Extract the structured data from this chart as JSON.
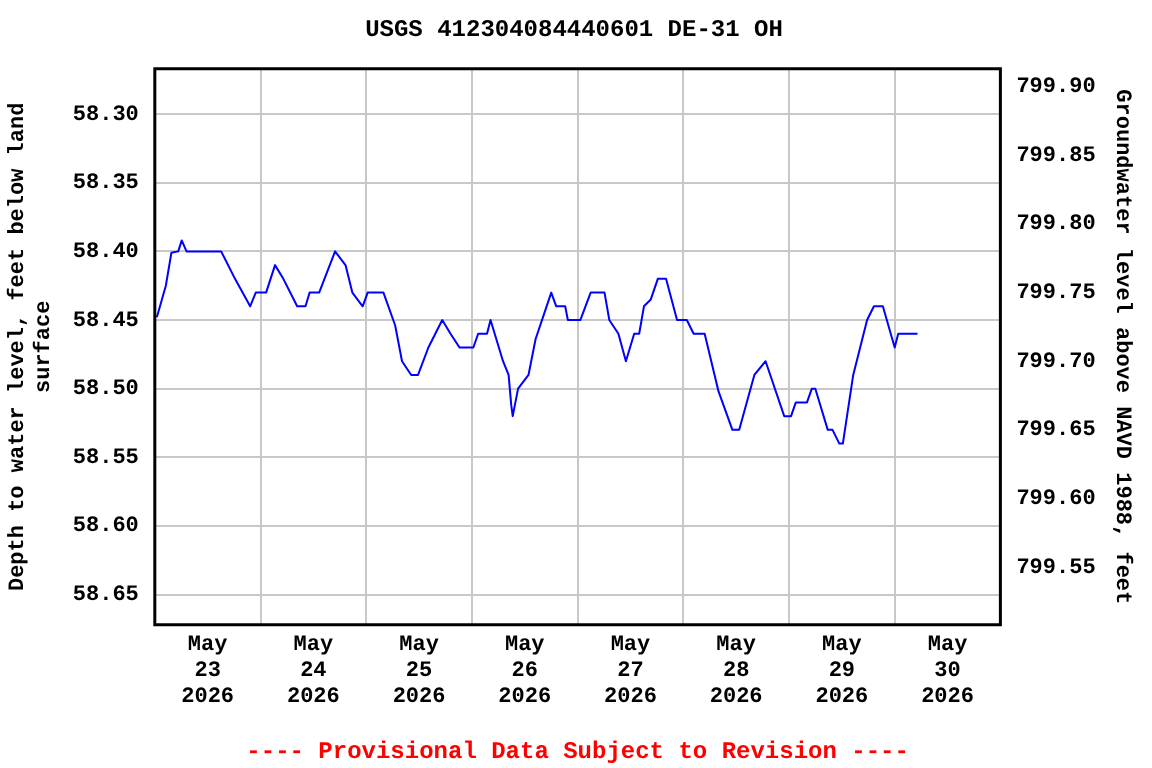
{
  "chart_data": {
    "type": "line",
    "title": "USGS 412304084440601 DE-31 OH",
    "xlabel": null,
    "ylabel": "Depth to water level, feet below land surface",
    "y2label": "Groundwater level above NAVD 1988, feet",
    "annotations": [
      "---- Provisional Data Subject to Revision ----"
    ],
    "x": [
      "2026-05-23T00:28",
      "2026-05-23T02:30",
      "2026-05-23T03:46",
      "2026-05-23T05:19",
      "2026-05-23T06:07",
      "2026-05-23T07:12",
      "2026-05-23T15:04",
      "2026-05-23T18:13",
      "2026-05-23T21:39",
      "2026-05-23T22:55",
      "2026-05-24T01:16",
      "2026-05-24T03:18",
      "2026-05-24T05:11",
      "2026-05-24T08:20",
      "2026-05-24T10:13",
      "2026-05-24T11:09",
      "2026-05-24T13:19",
      "2026-05-24T16:56",
      "2026-05-24T19:18",
      "2026-05-24T20:51",
      "2026-05-24T23:12",
      "2026-05-25T00:20",
      "2026-05-25T03:55",
      "2026-05-25T06:35",
      "2026-05-25T08:08",
      "2026-05-25T10:13",
      "2026-05-25T11:46",
      "2026-05-25T14:07",
      "2026-05-25T17:16",
      "2026-05-25T19:09",
      "2026-05-25T21:11",
      "2026-05-26T00:20",
      "2026-05-26T01:25",
      "2026-05-26T03:26",
      "2026-05-26T04:14",
      "2026-05-26T07:04",
      "2026-05-26T08:20",
      "2026-05-26T08:56",
      "2026-05-26T09:16",
      "2026-05-26T10:29",
      "2026-05-26T12:51",
      "2026-05-26T14:27",
      "2026-05-26T18:01",
      "2026-05-26T19:09",
      "2026-05-26T21:11",
      "2026-05-26T21:47",
      "2026-05-27T00:37",
      "2026-05-27T02:58",
      "2026-05-27T06:07",
      "2026-05-27T07:12",
      "2026-05-27T09:16",
      "2026-05-27T10:58",
      "2026-05-27T12:51",
      "2026-05-27T13:59",
      "2026-05-27T15:04",
      "2026-05-27T16:37",
      "2026-05-27T18:13",
      "2026-05-27T20:05",
      "2026-05-27T22:35",
      "2026-05-28T00:48",
      "2026-05-28T02:21",
      "2026-05-28T04:51",
      "2026-05-28T08:00",
      "2026-05-28T11:09",
      "2026-05-28T12:42",
      "2026-05-28T16:08",
      "2026-05-28T18:41",
      "2026-05-28T22:55",
      "2026-05-29T00:28",
      "2026-05-29T01:33",
      "2026-05-29T04:05",
      "2026-05-29T05:11",
      "2026-05-29T05:59",
      "2026-05-29T08:48",
      "2026-05-29T09:53",
      "2026-05-29T11:26",
      "2026-05-29T12:14",
      "2026-05-29T14:35",
      "2026-05-29T17:44",
      "2026-05-29T19:17",
      "2026-05-29T21:19",
      "2026-05-30T00:00",
      "2026-05-30T00:48",
      "2026-05-30T05:11"
    ],
    "series": [
      {
        "color": "#0000ff",
        "values": [
          58.448,
          58.425,
          58.401,
          58.4,
          58.392,
          58.4,
          58.4,
          58.42,
          58.44,
          58.43,
          58.43,
          58.41,
          58.42,
          58.44,
          58.44,
          58.43,
          58.43,
          58.4,
          58.41,
          58.43,
          58.44,
          58.43,
          58.43,
          58.454,
          58.48,
          58.49,
          58.49,
          58.47,
          58.45,
          58.46,
          58.47,
          58.47,
          58.46,
          58.46,
          58.45,
          58.48,
          58.49,
          58.512,
          58.52,
          58.5,
          58.49,
          58.464,
          58.43,
          58.44,
          58.44,
          58.45,
          58.45,
          58.43,
          58.43,
          58.45,
          58.46,
          58.48,
          58.46,
          58.46,
          58.44,
          58.435,
          58.42,
          58.42,
          58.45,
          58.45,
          58.46,
          58.46,
          58.502,
          58.53,
          58.53,
          58.49,
          58.48,
          58.52,
          58.52,
          58.51,
          58.51,
          58.5,
          58.5,
          58.53,
          58.53,
          58.54,
          58.54,
          58.49,
          58.45,
          58.44,
          58.44,
          58.47,
          58.46,
          58.46
        ]
      }
    ],
    "xlim": [
      "2026-05-23T00:00",
      "2026-05-31T00:00"
    ],
    "xticks": [
      {
        "value": "2026-05-23T12:00",
        "label": "May\n23\n2026"
      },
      {
        "value": "2026-05-24T00:00",
        "label": null
      },
      {
        "value": "2026-05-24T12:00",
        "label": "May\n24\n2026"
      },
      {
        "value": "2026-05-25T00:00",
        "label": null
      },
      {
        "value": "2026-05-25T12:00",
        "label": "May\n25\n2026"
      },
      {
        "value": "2026-05-26T00:00",
        "label": null
      },
      {
        "value": "2026-05-26T12:00",
        "label": "May\n26\n2026"
      },
      {
        "value": "2026-05-27T00:00",
        "label": null
      },
      {
        "value": "2026-05-27T12:00",
        "label": "May\n27\n2026"
      },
      {
        "value": "2026-05-28T00:00",
        "label": null
      },
      {
        "value": "2026-05-28T12:00",
        "label": "May\n28\n2026"
      },
      {
        "value": "2026-05-29T00:00",
        "label": null
      },
      {
        "value": "2026-05-29T12:00",
        "label": "May\n29\n2026"
      },
      {
        "value": "2026-05-30T00:00",
        "label": null
      },
      {
        "value": "2026-05-30T12:00",
        "label": "May\n30\n2026"
      }
    ],
    "ylim": [
      58.672,
      58.267
    ],
    "yticks": [
      {
        "value": 58.3,
        "label": "58.30"
      },
      {
        "value": 58.35,
        "label": "58.35"
      },
      {
        "value": 58.4,
        "label": "58.40"
      },
      {
        "value": 58.45,
        "label": "58.45"
      },
      {
        "value": 58.5,
        "label": "58.50"
      },
      {
        "value": 58.55,
        "label": "58.55"
      },
      {
        "value": 58.6,
        "label": "58.60"
      },
      {
        "value": 58.65,
        "label": "58.65"
      }
    ],
    "y2lim": [
      799.508,
      799.913
    ],
    "y2ticks": [
      {
        "value": 799.55,
        "label": "799.55"
      },
      {
        "value": 799.6,
        "label": "799.60"
      },
      {
        "value": 799.65,
        "label": "799.65"
      },
      {
        "value": 799.7,
        "label": "799.70"
      },
      {
        "value": 799.75,
        "label": "799.75"
      },
      {
        "value": 799.8,
        "label": "799.80"
      },
      {
        "value": 799.85,
        "label": "799.85"
      },
      {
        "value": 799.9,
        "label": "799.90"
      }
    ],
    "grid": true,
    "legend": false,
    "marker": "none",
    "line_style": "solid"
  }
}
